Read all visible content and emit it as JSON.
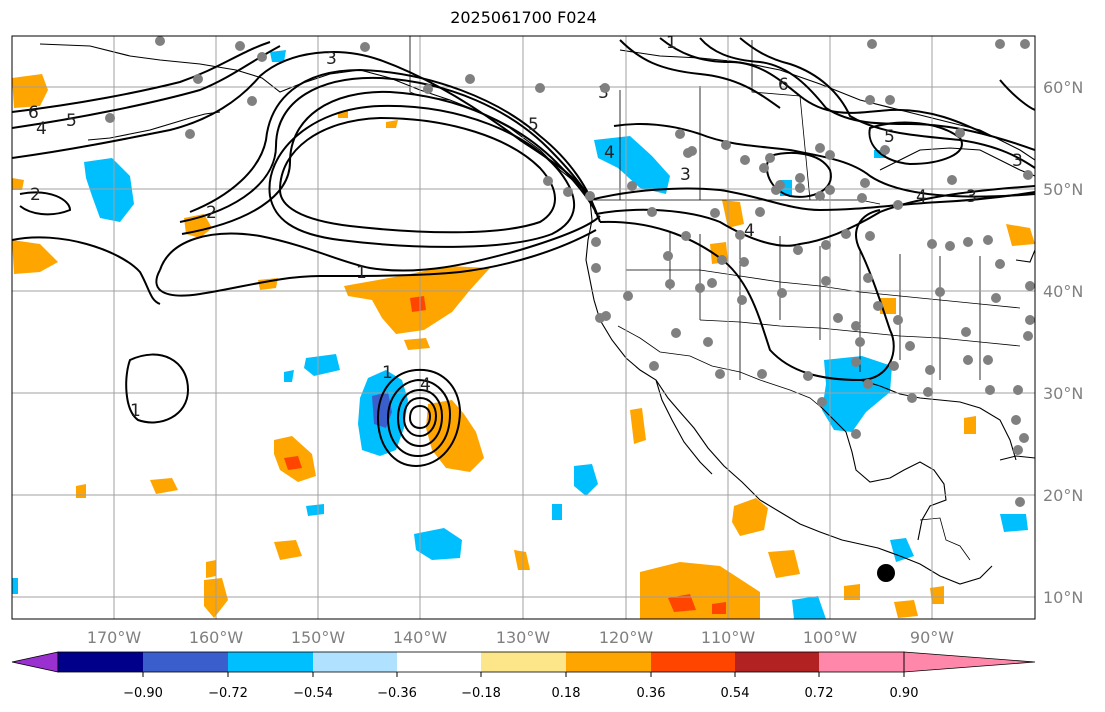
{
  "title": "2025061700 F024",
  "lon_labels": [
    "170°W",
    "160°W",
    "150°W",
    "140°W",
    "130°W",
    "120°W",
    "110°W",
    "100°W",
    "90°W"
  ],
  "lat_labels": [
    "60°N",
    "50°N",
    "40°N",
    "30°N",
    "20°N",
    "10°N"
  ],
  "colorbar": {
    "ticks": [
      "−0.90",
      "−0.72",
      "−0.54",
      "−0.36",
      "−0.18",
      "0.18",
      "0.36",
      "0.54",
      "0.72",
      "0.90"
    ],
    "colors": [
      "#9b30d0",
      "#00008b",
      "#3a5fcd",
      "#00bfff",
      "#b0e2ff",
      "#ffffff",
      "#fde68a",
      "#ffa500",
      "#ff4500",
      "#b22222",
      "#ff88aa"
    ]
  },
  "contour_labels": [
    "1",
    "2",
    "3",
    "4",
    "5",
    "6"
  ],
  "station_marker_color": "#808080",
  "highlight_marker_color": "#000000"
}
